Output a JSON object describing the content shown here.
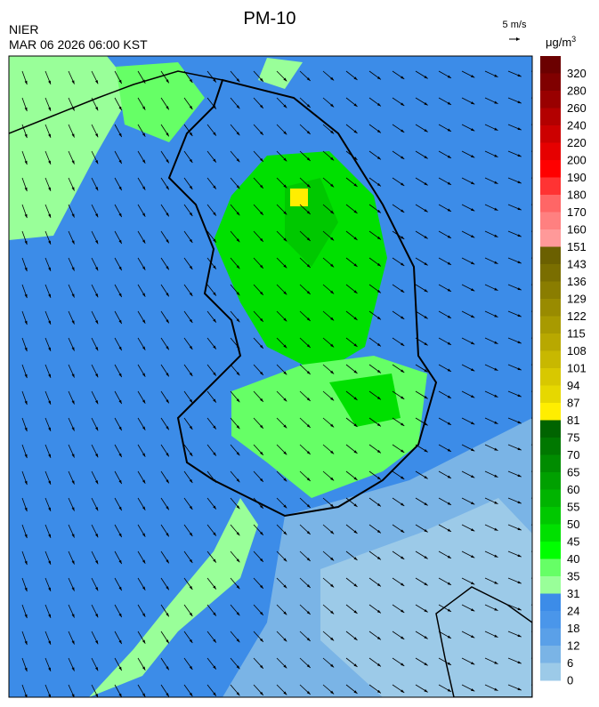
{
  "header": {
    "title": "PM-10",
    "org": "NIER",
    "datetime": "MAR 06 2026 06:00 KST"
  },
  "wind_scale": {
    "label": "5 m/s"
  },
  "legend": {
    "unit": "μg/m",
    "unit_superscript": "3",
    "labels": [
      "320",
      "280",
      "260",
      "240",
      "220",
      "200",
      "190",
      "180",
      "170",
      "160",
      "151",
      "143",
      "136",
      "129",
      "122",
      "115",
      "108",
      "101",
      "94",
      "87",
      "81",
      "75",
      "70",
      "65",
      "60",
      "55",
      "50",
      "45",
      "40",
      "35",
      "31",
      "24",
      "18",
      "12",
      "6",
      "0"
    ],
    "colors": [
      "#6b0000",
      "#800000",
      "#990000",
      "#b30000",
      "#cc0000",
      "#e60000",
      "#ff0000",
      "#ff3333",
      "#ff6666",
      "#ff8080",
      "#ff9999",
      "#6b6000",
      "#7a6e00",
      "#8a7d00",
      "#998b00",
      "#a89a00",
      "#b8a800",
      "#c8b800",
      "#d8c800",
      "#e6d800",
      "#ffee00",
      "#006400",
      "#007800",
      "#008c00",
      "#00a000",
      "#00b400",
      "#00c800",
      "#00e000",
      "#00ff00",
      "#66ff66",
      "#99ff99",
      "#3c8ce8",
      "#4a96ea",
      "#5aa0e8",
      "#7ab4e6",
      "#9ccae8"
    ]
  }
}
